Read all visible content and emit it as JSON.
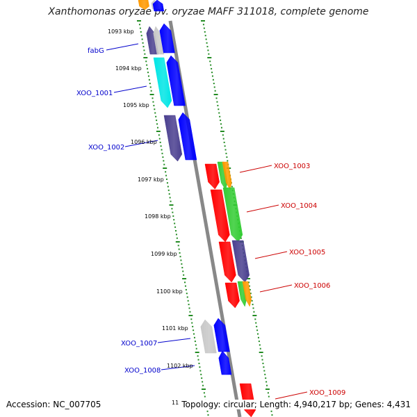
{
  "title": "Xanthomonas oryzae pv. oryzae MAFF 311018, complete genome",
  "footer": {
    "accession": "Accession: NC_007705",
    "summary": "Topology: circular; Length: 4,940,217 bp; Genes: 4,431"
  },
  "colors": {
    "backbone": "#888888",
    "ticks": "#228b22",
    "left_label": "#0000cc",
    "right_label": "#cc0000",
    "blue": "#0000ff",
    "navy": "#4a3f8f",
    "cyan": "#00e5e5",
    "gray": "#c8c8c8",
    "red": "#ff0000",
    "green": "#33cc33",
    "orange": "#ff9900"
  },
  "scale_labels": [
    "1093 kbp",
    "1094 kbp",
    "1095 kbp",
    "1096 kbp",
    "1097 kbp",
    "1098 kbp",
    "1099 kbp",
    "1100 kbp",
    "1101 kbp",
    "1102 kbp",
    "11"
  ],
  "left_genes": [
    "fabG",
    "XOO_1001",
    "XOO_1002",
    "XOO_1007",
    "XOO_1008"
  ],
  "right_genes": [
    "XOO_1003",
    "XOO_1004",
    "XOO_1005",
    "XOO_1006",
    "XOO_1009"
  ]
}
